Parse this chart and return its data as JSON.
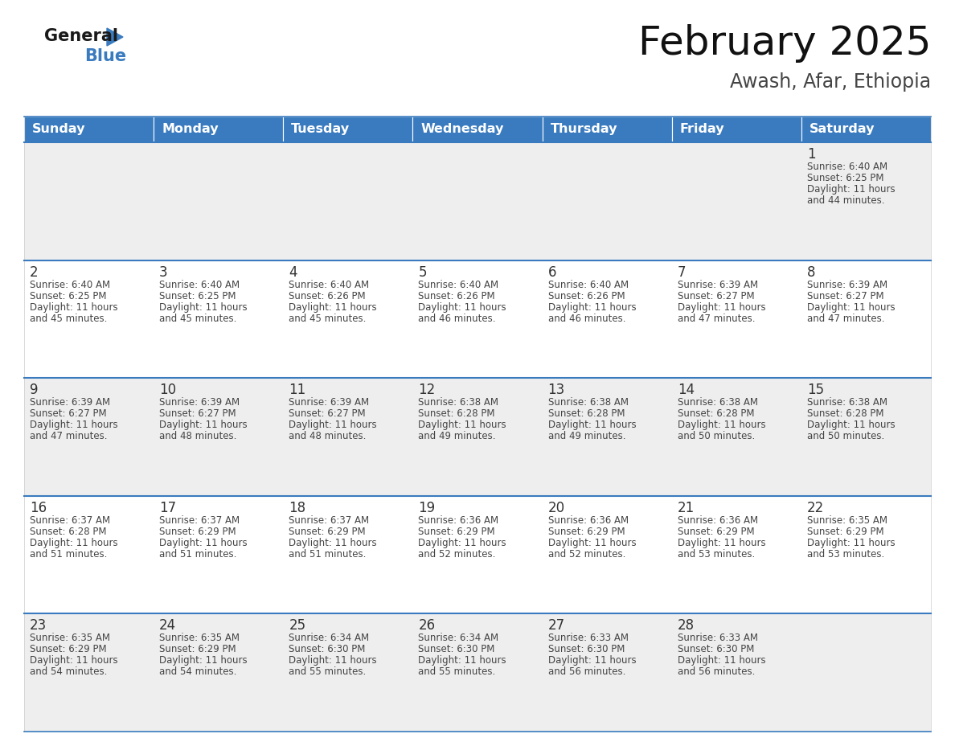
{
  "title": "February 2025",
  "subtitle": "Awash, Afar, Ethiopia",
  "header_color": "#3a7bbf",
  "header_text_color": "#ffffff",
  "cell_bg_row0": "#eeeeee",
  "cell_bg_row1": "#ffffff",
  "separator_color": "#3a7bbf",
  "text_color": "#444444",
  "day_number_color": "#333333",
  "title_color": "#111111",
  "subtitle_color": "#444444",
  "days_of_week": [
    "Sunday",
    "Monday",
    "Tuesday",
    "Wednesday",
    "Thursday",
    "Friday",
    "Saturday"
  ],
  "weeks": [
    [
      {
        "day": null,
        "sunrise": null,
        "sunset": null,
        "daylight_hrs": null,
        "daylight_min": null
      },
      {
        "day": null,
        "sunrise": null,
        "sunset": null,
        "daylight_hrs": null,
        "daylight_min": null
      },
      {
        "day": null,
        "sunrise": null,
        "sunset": null,
        "daylight_hrs": null,
        "daylight_min": null
      },
      {
        "day": null,
        "sunrise": null,
        "sunset": null,
        "daylight_hrs": null,
        "daylight_min": null
      },
      {
        "day": null,
        "sunrise": null,
        "sunset": null,
        "daylight_hrs": null,
        "daylight_min": null
      },
      {
        "day": null,
        "sunrise": null,
        "sunset": null,
        "daylight_hrs": null,
        "daylight_min": null
      },
      {
        "day": 1,
        "sunrise": "6:40 AM",
        "sunset": "6:25 PM",
        "daylight_hrs": 11,
        "daylight_min": 44
      }
    ],
    [
      {
        "day": 2,
        "sunrise": "6:40 AM",
        "sunset": "6:25 PM",
        "daylight_hrs": 11,
        "daylight_min": 45
      },
      {
        "day": 3,
        "sunrise": "6:40 AM",
        "sunset": "6:25 PM",
        "daylight_hrs": 11,
        "daylight_min": 45
      },
      {
        "day": 4,
        "sunrise": "6:40 AM",
        "sunset": "6:26 PM",
        "daylight_hrs": 11,
        "daylight_min": 45
      },
      {
        "day": 5,
        "sunrise": "6:40 AM",
        "sunset": "6:26 PM",
        "daylight_hrs": 11,
        "daylight_min": 46
      },
      {
        "day": 6,
        "sunrise": "6:40 AM",
        "sunset": "6:26 PM",
        "daylight_hrs": 11,
        "daylight_min": 46
      },
      {
        "day": 7,
        "sunrise": "6:39 AM",
        "sunset": "6:27 PM",
        "daylight_hrs": 11,
        "daylight_min": 47
      },
      {
        "day": 8,
        "sunrise": "6:39 AM",
        "sunset": "6:27 PM",
        "daylight_hrs": 11,
        "daylight_min": 47
      }
    ],
    [
      {
        "day": 9,
        "sunrise": "6:39 AM",
        "sunset": "6:27 PM",
        "daylight_hrs": 11,
        "daylight_min": 47
      },
      {
        "day": 10,
        "sunrise": "6:39 AM",
        "sunset": "6:27 PM",
        "daylight_hrs": 11,
        "daylight_min": 48
      },
      {
        "day": 11,
        "sunrise": "6:39 AM",
        "sunset": "6:27 PM",
        "daylight_hrs": 11,
        "daylight_min": 48
      },
      {
        "day": 12,
        "sunrise": "6:38 AM",
        "sunset": "6:28 PM",
        "daylight_hrs": 11,
        "daylight_min": 49
      },
      {
        "day": 13,
        "sunrise": "6:38 AM",
        "sunset": "6:28 PM",
        "daylight_hrs": 11,
        "daylight_min": 49
      },
      {
        "day": 14,
        "sunrise": "6:38 AM",
        "sunset": "6:28 PM",
        "daylight_hrs": 11,
        "daylight_min": 50
      },
      {
        "day": 15,
        "sunrise": "6:38 AM",
        "sunset": "6:28 PM",
        "daylight_hrs": 11,
        "daylight_min": 50
      }
    ],
    [
      {
        "day": 16,
        "sunrise": "6:37 AM",
        "sunset": "6:28 PM",
        "daylight_hrs": 11,
        "daylight_min": 51
      },
      {
        "day": 17,
        "sunrise": "6:37 AM",
        "sunset": "6:29 PM",
        "daylight_hrs": 11,
        "daylight_min": 51
      },
      {
        "day": 18,
        "sunrise": "6:37 AM",
        "sunset": "6:29 PM",
        "daylight_hrs": 11,
        "daylight_min": 51
      },
      {
        "day": 19,
        "sunrise": "6:36 AM",
        "sunset": "6:29 PM",
        "daylight_hrs": 11,
        "daylight_min": 52
      },
      {
        "day": 20,
        "sunrise": "6:36 AM",
        "sunset": "6:29 PM",
        "daylight_hrs": 11,
        "daylight_min": 52
      },
      {
        "day": 21,
        "sunrise": "6:36 AM",
        "sunset": "6:29 PM",
        "daylight_hrs": 11,
        "daylight_min": 53
      },
      {
        "day": 22,
        "sunrise": "6:35 AM",
        "sunset": "6:29 PM",
        "daylight_hrs": 11,
        "daylight_min": 53
      }
    ],
    [
      {
        "day": 23,
        "sunrise": "6:35 AM",
        "sunset": "6:29 PM",
        "daylight_hrs": 11,
        "daylight_min": 54
      },
      {
        "day": 24,
        "sunrise": "6:35 AM",
        "sunset": "6:29 PM",
        "daylight_hrs": 11,
        "daylight_min": 54
      },
      {
        "day": 25,
        "sunrise": "6:34 AM",
        "sunset": "6:30 PM",
        "daylight_hrs": 11,
        "daylight_min": 55
      },
      {
        "day": 26,
        "sunrise": "6:34 AM",
        "sunset": "6:30 PM",
        "daylight_hrs": 11,
        "daylight_min": 55
      },
      {
        "day": 27,
        "sunrise": "6:33 AM",
        "sunset": "6:30 PM",
        "daylight_hrs": 11,
        "daylight_min": 56
      },
      {
        "day": 28,
        "sunrise": "6:33 AM",
        "sunset": "6:30 PM",
        "daylight_hrs": 11,
        "daylight_min": 56
      },
      {
        "day": null,
        "sunrise": null,
        "sunset": null,
        "daylight_hrs": null,
        "daylight_min": null
      }
    ]
  ],
  "logo_general_color": "#1a1a1a",
  "logo_blue_color": "#3a7bbf",
  "logo_triangle_color": "#3a7bbf"
}
